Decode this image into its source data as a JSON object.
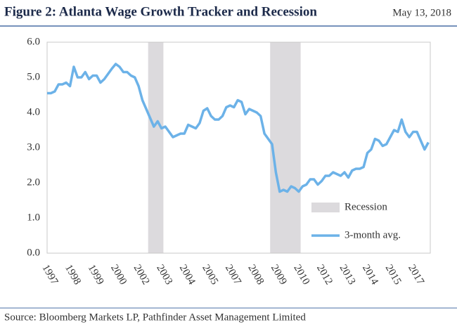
{
  "chart_data": {
    "type": "line",
    "title": "Figure 2: Atlanta Wage Growth Tracker and Recession",
    "date": "May 13, 2018",
    "source": "Source: Bloomberg Markets LP, Pathfinder Asset Management Limited",
    "categories": [
      "1997",
      null,
      null,
      null,
      null,
      null,
      "1998",
      null,
      null,
      null,
      null,
      null,
      "1999",
      null,
      null,
      null,
      null,
      null,
      "2000",
      null,
      null,
      null,
      null,
      null,
      "2002",
      null,
      null,
      null,
      null,
      null,
      "2003",
      null,
      null,
      null,
      null,
      null,
      "2004",
      null,
      null,
      null,
      null,
      null,
      "2005",
      null,
      null,
      null,
      null,
      null,
      "2007",
      null,
      null,
      null,
      null,
      null,
      "2008",
      null,
      null,
      null,
      null,
      null,
      "2009",
      null,
      null,
      null,
      null,
      null,
      "2010",
      null,
      null,
      null,
      null,
      null,
      "2012",
      null,
      null,
      null,
      null,
      null,
      "2013",
      null,
      null,
      null,
      null,
      null,
      "2014",
      null,
      null,
      null,
      null,
      null,
      "2015",
      null,
      null,
      null,
      null,
      null,
      "2017",
      null,
      null,
      null,
      null
    ],
    "series": [
      {
        "name": "3-month avg.",
        "color": "#6cb2e8",
        "values": [
          4.55,
          4.55,
          4.6,
          4.8,
          4.8,
          4.85,
          4.75,
          5.3,
          5.0,
          5.0,
          5.15,
          4.95,
          5.05,
          5.05,
          4.85,
          4.95,
          5.1,
          5.25,
          5.38,
          5.3,
          5.15,
          5.15,
          5.05,
          5.0,
          4.75,
          4.35,
          4.1,
          3.85,
          3.6,
          3.75,
          3.55,
          3.6,
          3.45,
          3.3,
          3.35,
          3.4,
          3.4,
          3.65,
          3.6,
          3.55,
          3.7,
          4.05,
          4.12,
          3.9,
          3.8,
          3.8,
          3.9,
          4.15,
          4.2,
          4.15,
          4.35,
          4.3,
          3.95,
          4.1,
          4.05,
          4.0,
          3.9,
          3.4,
          3.25,
          3.1,
          2.3,
          1.75,
          1.8,
          1.75,
          1.9,
          1.85,
          1.75,
          1.9,
          1.95,
          2.1,
          2.1,
          1.95,
          2.05,
          2.2,
          2.2,
          2.3,
          2.25,
          2.2,
          2.3,
          2.15,
          2.35,
          2.4,
          2.4,
          2.45,
          2.85,
          2.95,
          3.25,
          3.2,
          3.05,
          3.1,
          3.3,
          3.5,
          3.45,
          3.8,
          3.45,
          3.3,
          3.45,
          3.45,
          3.2,
          2.95,
          3.15
        ]
      }
    ],
    "bands": [
      {
        "name": "Recession",
        "color": "#dcdadd",
        "spans": [
          [
            27,
            30
          ],
          [
            59,
            66
          ]
        ]
      }
    ],
    "ylim": [
      0,
      6
    ],
    "yticks": [
      {
        "value": 0,
        "label": "0.0"
      },
      {
        "value": 1,
        "label": "1.0"
      },
      {
        "value": 2,
        "label": "2.0"
      },
      {
        "value": 3,
        "label": "3.0"
      },
      {
        "value": 4,
        "label": "4.0"
      },
      {
        "value": 5,
        "label": "5.0"
      },
      {
        "value": 6,
        "label": "6.0"
      }
    ],
    "grid": false,
    "legend": "lower right"
  }
}
